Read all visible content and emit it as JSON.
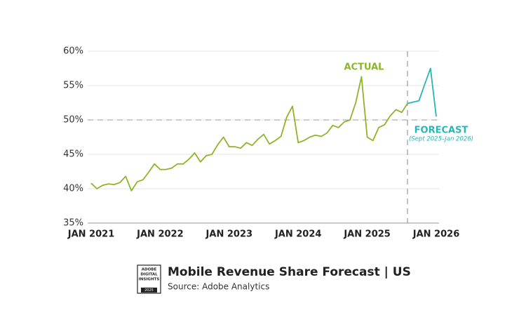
{
  "chart_data": {
    "type": "line",
    "title": "Mobile Revenue Share Forecast | US",
    "subtitle": "Source: Adobe Analytics",
    "logo": [
      "ADOBE",
      "DIGITAL",
      "INSIGHTS",
      "2025"
    ],
    "annotation": "(Sept 2025–Jan 2026)",
    "categories": [
      "JAN 2021",
      null,
      null,
      null,
      null,
      null,
      null,
      null,
      null,
      null,
      null,
      null,
      "JAN 2022",
      null,
      null,
      null,
      null,
      null,
      null,
      null,
      null,
      null,
      null,
      null,
      "JAN 2023",
      null,
      null,
      null,
      null,
      null,
      null,
      null,
      null,
      null,
      null,
      null,
      "JAN 2024",
      null,
      null,
      null,
      null,
      null,
      null,
      null,
      null,
      null,
      null,
      null,
      "JAN 2025",
      null,
      null,
      null,
      null,
      null,
      null,
      null,
      null,
      null,
      null,
      null,
      "JAN 2026"
    ],
    "series": [
      {
        "name": "ACTUAL",
        "color": "#8db52a",
        "values": [
          40.8,
          40.0,
          40.5,
          40.7,
          40.6,
          40.9,
          41.8,
          39.7,
          41.0,
          41.3,
          42.4,
          43.6,
          42.8,
          42.8,
          43.0,
          43.6,
          43.6,
          44.3,
          45.2,
          43.9,
          44.8,
          45.0,
          46.4,
          47.5,
          46.1,
          46.1,
          45.9,
          46.7,
          46.3,
          47.2,
          47.9,
          46.5,
          47.0,
          47.6,
          50.4,
          52.0,
          46.7,
          47.0,
          47.5,
          47.8,
          47.6,
          48.1,
          49.2,
          48.9,
          49.7,
          50.0,
          52.5,
          56.3,
          47.5,
          47.0,
          48.9,
          49.3,
          50.6,
          51.5,
          51.1,
          52.4,
          null,
          null,
          null,
          null,
          null
        ]
      },
      {
        "name": "FORECAST",
        "color": "#29b5b5",
        "values": [
          null,
          null,
          null,
          null,
          null,
          null,
          null,
          null,
          null,
          null,
          null,
          null,
          null,
          null,
          null,
          null,
          null,
          null,
          null,
          null,
          null,
          null,
          null,
          null,
          null,
          null,
          null,
          null,
          null,
          null,
          null,
          null,
          null,
          null,
          null,
          null,
          null,
          null,
          null,
          null,
          null,
          null,
          null,
          null,
          null,
          null,
          null,
          null,
          null,
          null,
          null,
          null,
          null,
          null,
          null,
          52.4,
          52.6,
          52.8,
          55.2,
          57.5,
          50.5
        ]
      }
    ],
    "ylim": [
      35,
      60
    ],
    "yticks": [
      {
        "value": 35,
        "label": "35%"
      },
      {
        "value": 40,
        "label": "40%"
      },
      {
        "value": 45,
        "label": "45%"
      },
      {
        "value": 50,
        "label": "50%"
      },
      {
        "value": 55,
        "label": "55%"
      },
      {
        "value": 60,
        "label": "60%"
      }
    ],
    "reference_line": 50,
    "grid": true
  }
}
